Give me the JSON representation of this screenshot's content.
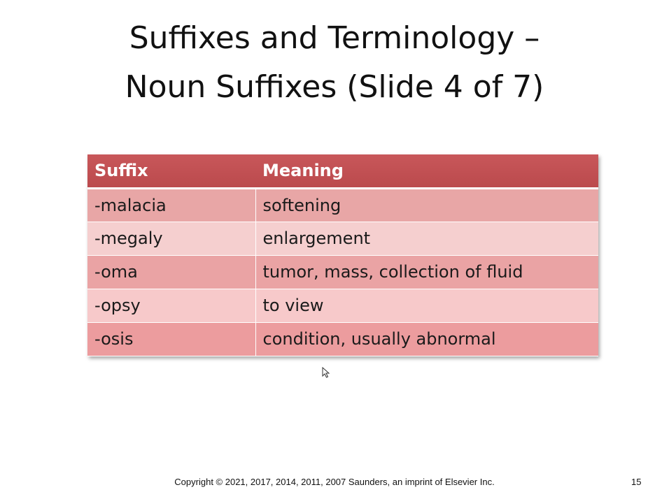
{
  "slide": {
    "title_line1": "Suffixes and Terminology –",
    "title_line2": "Noun Suffixes (Slide 4 of 7)"
  },
  "table": {
    "headers": [
      "Suffix",
      "Meaning"
    ],
    "rows": [
      {
        "suffix": "-malacia",
        "meaning": "softening"
      },
      {
        "suffix": "-megaly",
        "meaning": "enlargement"
      },
      {
        "suffix": "-oma",
        "meaning": "tumor, mass, collection of fluid"
      },
      {
        "suffix": "-opsy",
        "meaning": "to view"
      },
      {
        "suffix": "-osis",
        "meaning": "condition, usually abnormal"
      }
    ]
  },
  "footer": {
    "copyright": "Copyright ©  2021, 2017, 2014, 2011, 2007 Saunders, an imprint of Elsevier Inc.",
    "page_number": "15"
  },
  "colors": {
    "header_bg": "#c0504d",
    "row_dark": "#e9a3a4",
    "row_light": "#f6cccd"
  }
}
